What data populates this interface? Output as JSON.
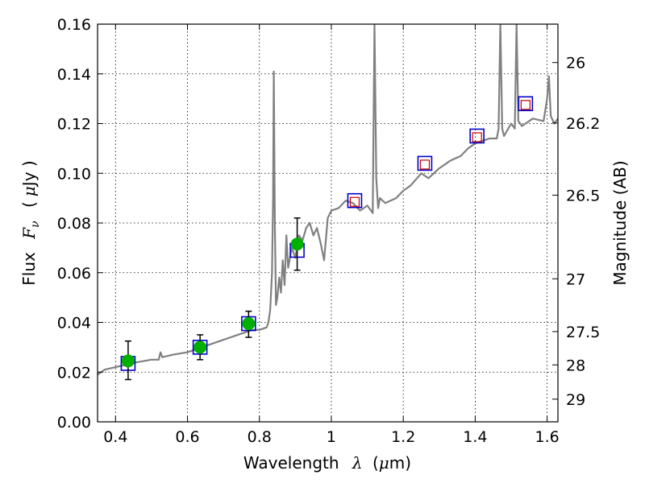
{
  "chart_data": {
    "type": "scatter",
    "xlabel_text": "Wavelength",
    "xlabel_symbol": "λ",
    "xlabel_unit_pre": "(",
    "xlabel_unit_mu": "μ",
    "xlabel_unit_post": "m)",
    "ylabel_text": "Flux",
    "ylabel_symbol": "F",
    "ylabel_subscript": "ν",
    "ylabel_unit_pre": "(",
    "ylabel_unit_mu": "μ",
    "ylabel_unit_post": "Jy )",
    "y2label": "Magnitude (AB)",
    "xlim": [
      0.35,
      1.63
    ],
    "ylim": [
      0.0,
      0.16
    ],
    "grid": true,
    "x_ticks": [
      {
        "v": 0.4,
        "label": "0.4"
      },
      {
        "v": 0.6,
        "label": "0.6"
      },
      {
        "v": 0.8,
        "label": "0.8"
      },
      {
        "v": 1.0,
        "label": "1"
      },
      {
        "v": 1.2,
        "label": "1.2"
      },
      {
        "v": 1.4,
        "label": "1.4"
      },
      {
        "v": 1.6,
        "label": "1.6"
      }
    ],
    "y_ticks": [
      {
        "v": 0.0,
        "label": "0.00"
      },
      {
        "v": 0.02,
        "label": "0.02"
      },
      {
        "v": 0.04,
        "label": "0.04"
      },
      {
        "v": 0.06,
        "label": "0.06"
      },
      {
        "v": 0.08,
        "label": "0.08"
      },
      {
        "v": 0.1,
        "label": "0.10"
      },
      {
        "v": 0.12,
        "label": "0.12"
      },
      {
        "v": 0.14,
        "label": "0.14"
      },
      {
        "v": 0.16,
        "label": "0.16"
      }
    ],
    "mag_ticks": [
      {
        "mag": 26.0,
        "label": "26"
      },
      {
        "mag": 26.2,
        "label": "26.2"
      },
      {
        "mag": 26.5,
        "label": "26.5"
      },
      {
        "mag": 27.0,
        "label": "27"
      },
      {
        "mag": 27.5,
        "label": "27.5"
      },
      {
        "mag": 28.0,
        "label": "28"
      },
      {
        "mag": 29.0,
        "label": "29"
      }
    ],
    "model_spectrum": {
      "color": "#808080",
      "x": [
        0.35,
        0.37,
        0.4,
        0.43,
        0.46,
        0.5,
        0.52,
        0.525,
        0.53,
        0.56,
        0.6,
        0.64,
        0.68,
        0.7,
        0.72,
        0.74,
        0.76,
        0.78,
        0.8,
        0.82,
        0.825,
        0.83,
        0.835,
        0.838,
        0.84,
        0.843,
        0.846,
        0.85,
        0.855,
        0.86,
        0.865,
        0.87,
        0.875,
        0.88,
        0.89,
        0.9,
        0.91,
        0.92,
        0.93,
        0.94,
        0.95,
        0.96,
        0.97,
        0.98,
        0.99,
        1.0,
        1.02,
        1.04,
        1.06,
        1.08,
        1.1,
        1.115,
        1.12,
        1.125,
        1.13,
        1.135,
        1.15,
        1.18,
        1.2,
        1.22,
        1.25,
        1.27,
        1.3,
        1.33,
        1.36,
        1.38,
        1.4,
        1.42,
        1.44,
        1.46,
        1.465,
        1.47,
        1.475,
        1.48,
        1.5,
        1.51,
        1.515,
        1.52,
        1.53,
        1.56,
        1.59,
        1.6,
        1.605,
        1.61,
        1.62,
        1.63
      ],
      "y": [
        0.019,
        0.021,
        0.022,
        0.023,
        0.024,
        0.025,
        0.025,
        0.028,
        0.026,
        0.027,
        0.028,
        0.03,
        0.032,
        0.033,
        0.034,
        0.035,
        0.036,
        0.037,
        0.037,
        0.038,
        0.04,
        0.045,
        0.06,
        0.09,
        0.141,
        0.08,
        0.047,
        0.05,
        0.058,
        0.052,
        0.065,
        0.055,
        0.075,
        0.062,
        0.07,
        0.066,
        0.075,
        0.073,
        0.078,
        0.08,
        0.075,
        0.078,
        0.072,
        0.065,
        0.082,
        0.085,
        0.086,
        0.089,
        0.088,
        0.085,
        0.087,
        0.084,
        0.16,
        0.098,
        0.086,
        0.09,
        0.088,
        0.09,
        0.093,
        0.095,
        0.1,
        0.098,
        0.102,
        0.105,
        0.107,
        0.11,
        0.112,
        0.113,
        0.114,
        0.114,
        0.118,
        0.16,
        0.118,
        0.115,
        0.12,
        0.118,
        0.16,
        0.121,
        0.119,
        0.122,
        0.121,
        0.13,
        0.139,
        0.123,
        0.12,
        0.122
      ]
    },
    "model_points": {
      "marker": "open-square",
      "color": "#0000cc",
      "x": [
        0.435,
        0.635,
        0.77,
        0.905
      ],
      "y": [
        0.0235,
        0.03,
        0.0395,
        0.069
      ]
    },
    "observed_points": {
      "marker": "filled-circle",
      "color": "#00b000",
      "x": [
        0.435,
        0.635,
        0.77,
        0.905
      ],
      "y": [
        0.0245,
        0.03,
        0.0395,
        0.0715
      ],
      "err_low": [
        0.0075,
        0.005,
        0.0055,
        0.0105
      ],
      "err_high": [
        0.008,
        0.005,
        0.005,
        0.0105
      ]
    },
    "nir_model_points": {
      "marker": "open-square",
      "color": "#0000cc",
      "x": [
        1.065,
        1.26,
        1.405,
        1.54
      ],
      "y": [
        0.089,
        0.104,
        0.115,
        0.128
      ]
    },
    "nir_predicted_points": {
      "marker": "open-square-small",
      "color": "#cc0000",
      "x": [
        1.065,
        1.26,
        1.405,
        1.54
      ],
      "y": [
        0.0885,
        0.1035,
        0.1145,
        0.1275
      ]
    }
  }
}
